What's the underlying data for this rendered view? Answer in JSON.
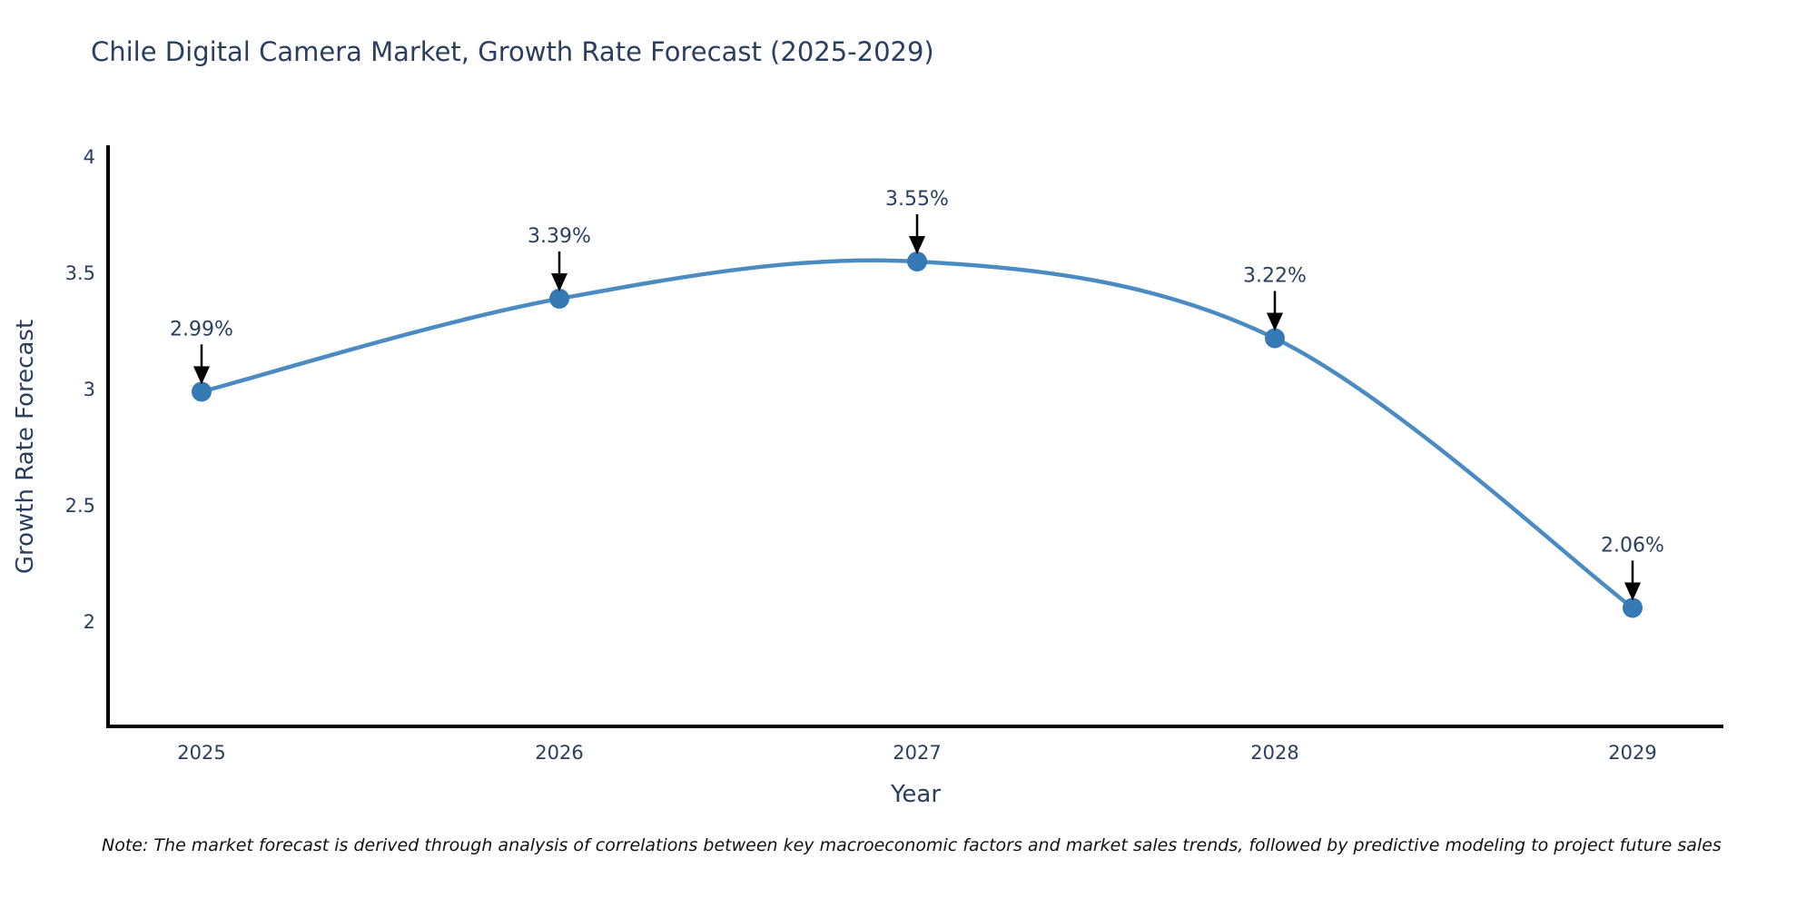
{
  "title": "Chile Digital Camera Market, Growth Rate Forecast (2025-2029)",
  "note": "Note: The market forecast is derived through analysis of correlations between key macroeconomic factors and market sales trends, followed by predictive modeling to project future sales",
  "chart_data": {
    "type": "line",
    "line_shape": "spline",
    "x": [
      2025,
      2026,
      2027,
      2028,
      2029
    ],
    "values": [
      2.99,
      3.39,
      3.55,
      3.22,
      2.06
    ],
    "point_labels": [
      "2.99%",
      "3.39%",
      "3.55%",
      "3.22%",
      "2.06%"
    ],
    "title": "Chile Digital Camera Market, Growth Rate Forecast (2025-2029)",
    "xlabel": "Year",
    "ylabel": "Growth Rate Forecast",
    "xtick_labels": [
      "2025",
      "2026",
      "2027",
      "2028",
      "2029"
    ],
    "yticks": [
      2,
      2.5,
      3,
      3.5,
      4
    ],
    "ytick_labels": [
      "2",
      "2.5",
      "3",
      "3.5",
      "4"
    ],
    "ylim": [
      1.55,
      4.05
    ],
    "grid": false,
    "legend_position": "none",
    "annotations_style": "black-down-arrows",
    "colors": {
      "line": "#4a8bc2",
      "marker": "#3579b5",
      "arrow": "#000000",
      "axis": "#000000",
      "text": "#2a3f5f",
      "background": "#ffffff"
    }
  }
}
